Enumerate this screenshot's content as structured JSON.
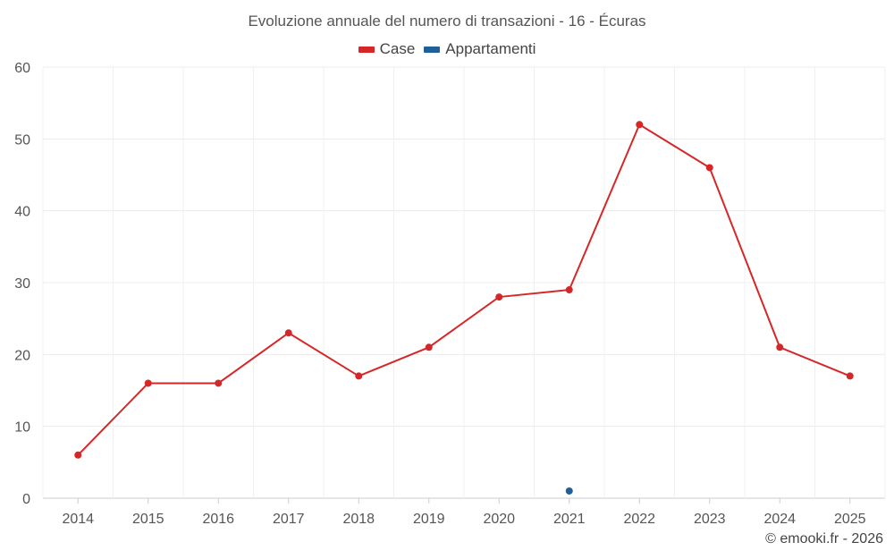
{
  "chart_data": {
    "type": "line",
    "title": "Evoluzione annuale del numero di transazioni - 16 - Écuras",
    "x": [
      "2014",
      "2015",
      "2016",
      "2017",
      "2018",
      "2019",
      "2020",
      "2021",
      "2022",
      "2023",
      "2024",
      "2025"
    ],
    "ylim": [
      0,
      60
    ],
    "yticks": [
      0,
      10,
      20,
      30,
      40,
      50,
      60
    ],
    "grid": true,
    "legend_position": "top-center",
    "series": [
      {
        "name": "Case",
        "color": "#d62728",
        "values": [
          6,
          16,
          16,
          23,
          17,
          21,
          28,
          29,
          52,
          46,
          21,
          17
        ]
      },
      {
        "name": "Appartamenti",
        "color": "#1f5f9a",
        "values": [
          null,
          null,
          null,
          null,
          null,
          null,
          null,
          1,
          null,
          null,
          null,
          null
        ]
      }
    ]
  },
  "credit": "© emooki.fr - 2026"
}
